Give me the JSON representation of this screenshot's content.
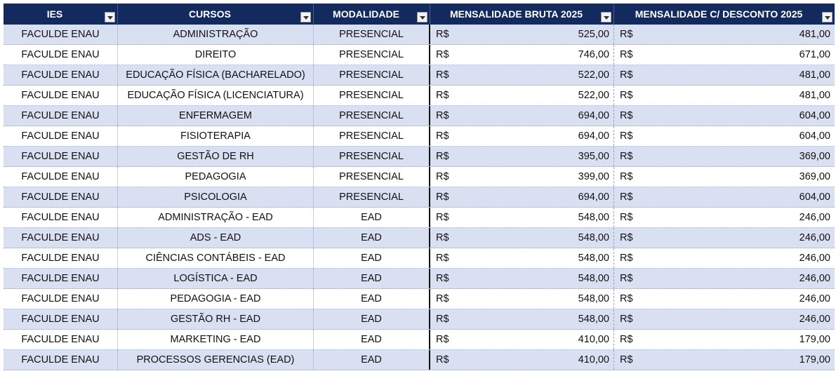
{
  "header": {
    "ies": "IES",
    "cursos": "CURSOS",
    "modalidade": "MODALIDADE",
    "bruta": "MENSALIDADE BRUTA 2025",
    "desconto": "MENSALIDADE C/ DESCONTO 2025"
  },
  "currency": "R$",
  "rows": [
    {
      "ies": "FACULDE ENAU",
      "curso": "ADMINISTRAÇÃO",
      "modalidade": "PRESENCIAL",
      "bruta": "525,00",
      "desconto": "481,00"
    },
    {
      "ies": "FACULDE ENAU",
      "curso": "DIREITO",
      "modalidade": "PRESENCIAL",
      "bruta": "746,00",
      "desconto": "671,00"
    },
    {
      "ies": "FACULDE ENAU",
      "curso": "EDUCAÇÃO FÍSICA (BACHARELADO)",
      "modalidade": "PRESENCIAL",
      "bruta": "522,00",
      "desconto": "481,00"
    },
    {
      "ies": "FACULDE ENAU",
      "curso": "EDUCAÇÃO FÍSICA (LICENCIATURA)",
      "modalidade": "PRESENCIAL",
      "bruta": "522,00",
      "desconto": "481,00"
    },
    {
      "ies": "FACULDE ENAU",
      "curso": "ENFERMAGEM",
      "modalidade": "PRESENCIAL",
      "bruta": "694,00",
      "desconto": "604,00"
    },
    {
      "ies": "FACULDE ENAU",
      "curso": "FISIOTERAPIA",
      "modalidade": "PRESENCIAL",
      "bruta": "694,00",
      "desconto": "604,00"
    },
    {
      "ies": "FACULDE ENAU",
      "curso": "GESTÃO DE RH",
      "modalidade": "PRESENCIAL",
      "bruta": "395,00",
      "desconto": "369,00"
    },
    {
      "ies": "FACULDE ENAU",
      "curso": "PEDAGOGIA",
      "modalidade": "PRESENCIAL",
      "bruta": "399,00",
      "desconto": "369,00"
    },
    {
      "ies": "FACULDE ENAU",
      "curso": "PSICOLOGIA",
      "modalidade": "PRESENCIAL",
      "bruta": "694,00",
      "desconto": "604,00"
    },
    {
      "ies": "FACULDE ENAU",
      "curso": "ADMINISTRAÇÃO - EAD",
      "modalidade": "EAD",
      "bruta": "548,00",
      "desconto": "246,00"
    },
    {
      "ies": "FACULDE ENAU",
      "curso": "ADS - EAD",
      "modalidade": "EAD",
      "bruta": "548,00",
      "desconto": "246,00"
    },
    {
      "ies": "FACULDE ENAU",
      "curso": "CIÊNCIAS CONTÁBEIS - EAD",
      "modalidade": "EAD",
      "bruta": "548,00",
      "desconto": "246,00"
    },
    {
      "ies": "FACULDE ENAU",
      "curso": "LOGÍSTICA - EAD",
      "modalidade": "EAD",
      "bruta": "548,00",
      "desconto": "246,00"
    },
    {
      "ies": "FACULDE ENAU",
      "curso": "PEDAGOGIA - EAD",
      "modalidade": "EAD",
      "bruta": "548,00",
      "desconto": "246,00"
    },
    {
      "ies": "FACULDE ENAU",
      "curso": "GESTÃO RH - EAD",
      "modalidade": "EAD",
      "bruta": "548,00",
      "desconto": "246,00"
    },
    {
      "ies": "FACULDE ENAU",
      "curso": "MARKETING - EAD",
      "modalidade": "EAD",
      "bruta": "410,00",
      "desconto": "179,00"
    },
    {
      "ies": "FACULDE ENAU",
      "curso": "PROCESSOS GERENCIAS (EAD)",
      "modalidade": "EAD",
      "bruta": "410,00",
      "desconto": "179,00"
    }
  ]
}
